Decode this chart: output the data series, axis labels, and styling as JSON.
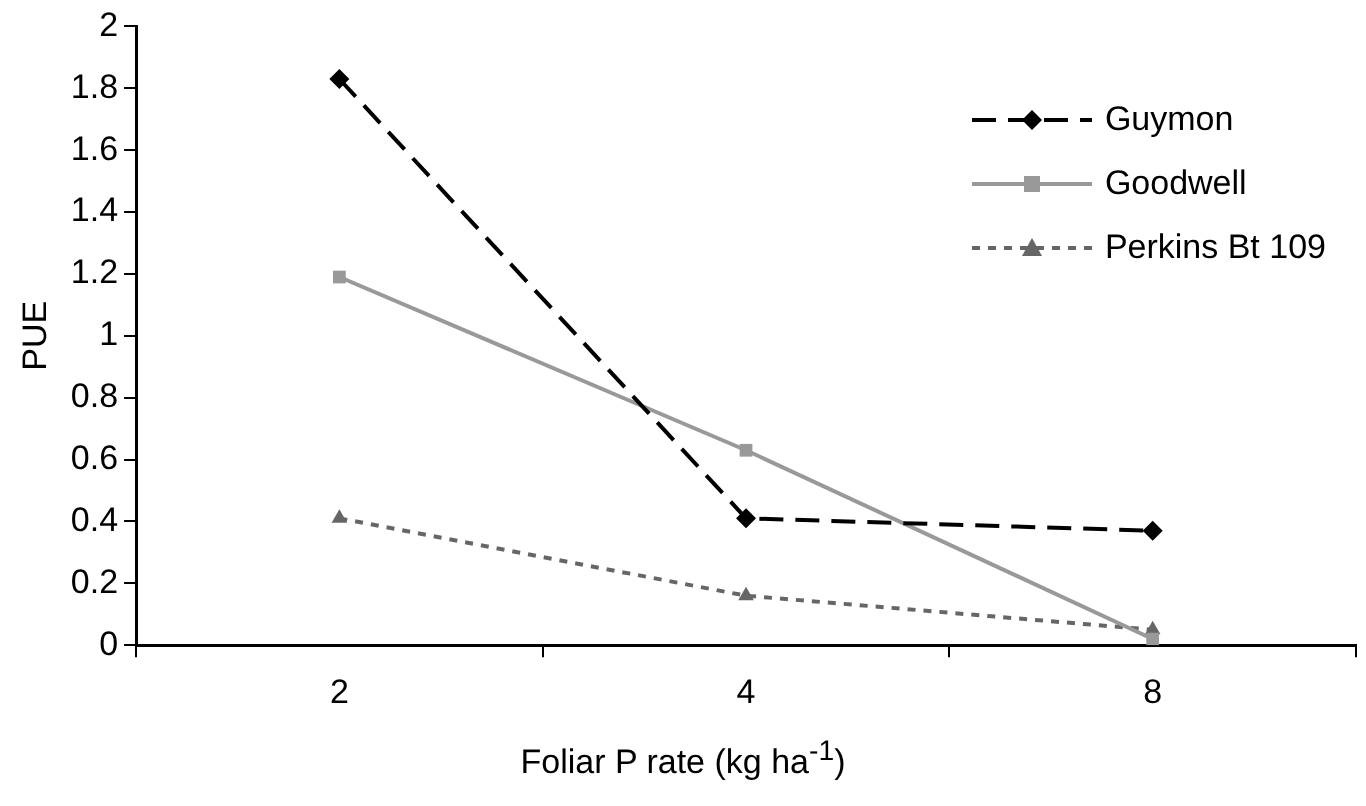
{
  "chart_data": {
    "type": "line",
    "xlabel": "Foliar P rate (kg ha$^{-1}$)",
    "ylabel": "PUE",
    "categories": [
      "2",
      "4",
      "8"
    ],
    "series": [
      {
        "name": "Guymon",
        "color": "#000000",
        "values": [
          1.83,
          0.41,
          0.37
        ],
        "marker": "diamond",
        "line_style": "dashed"
      },
      {
        "name": "Goodwell",
        "color": "#999999",
        "values": [
          1.19,
          0.63,
          0.02
        ],
        "marker": "square",
        "line_style": "solid"
      },
      {
        "name": "Perkins Bt 109",
        "color": "#666666",
        "values": [
          0.41,
          0.16,
          0.05
        ],
        "marker": "triangle",
        "line_style": "dotted"
      }
    ],
    "ylim": [
      0,
      2
    ],
    "yticks": [
      0,
      0.2,
      0.4,
      0.6,
      0.8,
      1,
      1.2,
      1.4,
      1.6,
      1.8,
      2
    ],
    "grid": false,
    "legend": "top right"
  }
}
